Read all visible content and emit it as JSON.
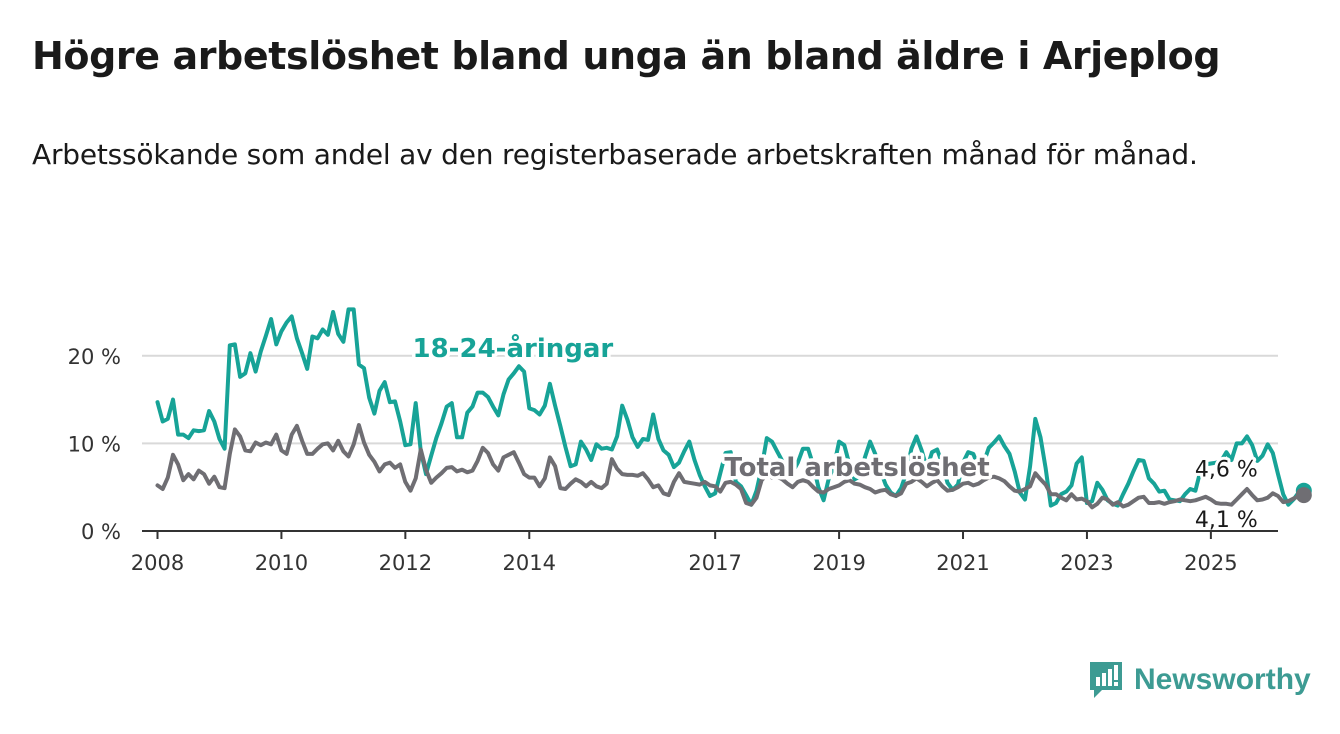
{
  "title": "Högre arbetslöshet bland unga än bland äldre i Arjeplog",
  "subtitle": "Arbetssökande som andel av den registerbaserade arbetskraften månad för månad.",
  "brand": "Newsworthy",
  "colors": {
    "youth": "#17a397",
    "total": "#6f6e73",
    "grid": "#d9d9d9",
    "brand": "#3d9b93"
  },
  "chart_data": {
    "type": "line",
    "x_range": [
      "2007-10",
      "2026-02"
    ],
    "ylim": [
      0,
      25
    ],
    "y_ticks": [
      0,
      10,
      20
    ],
    "y_tick_labels": [
      "0 %",
      "10 %",
      "20 %"
    ],
    "x_ticks": [
      "2008",
      "2010",
      "2012",
      "2014",
      "2017",
      "2019",
      "2021",
      "2023",
      "2025"
    ],
    "grid": true,
    "series": [
      {
        "name": "18-24-åringar",
        "color": "#17a397",
        "start": "2008-01",
        "values": [
          14.7,
          12.5,
          12.8,
          15.0,
          11.0,
          11.0,
          10.6,
          11.5,
          11.4,
          11.5,
          13.7,
          12.5,
          10.5,
          9.4,
          21.2,
          21.3,
          17.6,
          18.0,
          20.3,
          18.2,
          20.5,
          22.3,
          24.2,
          21.3,
          22.8,
          23.8,
          24.5,
          22.0,
          20.3,
          18.5,
          22.2,
          22.0,
          23.0,
          22.4,
          25.0,
          22.5,
          21.6,
          25.3,
          25.3,
          19.0,
          18.6,
          15.2,
          13.4,
          16.0,
          17.0,
          14.7,
          14.8,
          12.5,
          9.8,
          9.9,
          14.6,
          9.1,
          6.5,
          8.6,
          10.6,
          12.3,
          14.2,
          14.6,
          10.7,
          10.7,
          13.5,
          14.2,
          15.8,
          15.8,
          15.3,
          14.2,
          13.2,
          15.6,
          17.3,
          18.0,
          18.8,
          18.2,
          14.0,
          13.8,
          13.3,
          14.3,
          16.8,
          14.3,
          12.0,
          9.6,
          7.4,
          7.6,
          10.2,
          9.3,
          8.1,
          9.9,
          9.4,
          9.5,
          9.3,
          10.8,
          14.3,
          12.7,
          10.7,
          9.6,
          10.5,
          10.4,
          13.3,
          10.5,
          9.2,
          8.7,
          7.3,
          7.8,
          9.1,
          10.2,
          8.1,
          6.4,
          5.1,
          4.0,
          4.3,
          6.6,
          8.9,
          9.0,
          5.6,
          5.1,
          4.1,
          3.0,
          4.6,
          7.2,
          10.6,
          10.2,
          9.1,
          8.0,
          6.5,
          6.7,
          7.8,
          9.4,
          9.4,
          7.5,
          5.0,
          3.5,
          6.0,
          7.4,
          10.2,
          9.8,
          7.6,
          5.9,
          6.2,
          8.4,
          10.2,
          8.8,
          6.9,
          5.3,
          4.4,
          4.0,
          4.9,
          6.6,
          9.4,
          10.8,
          9.2,
          7.1,
          9.0,
          9.3,
          7.6,
          5.5,
          4.7,
          5.3,
          7.8,
          9.0,
          8.8,
          7.3,
          7.8,
          9.5,
          10.1,
          10.8,
          9.7,
          8.8,
          6.8,
          4.4,
          3.6,
          7.4,
          12.8,
          10.7,
          7.2,
          2.9,
          3.2,
          4.2,
          4.5,
          5.2,
          7.7,
          8.4,
          3.2,
          3.4,
          5.5,
          4.7,
          3.5,
          3.1,
          2.9,
          4.2,
          5.4,
          6.8,
          8.1,
          8.0,
          6.0,
          5.4,
          4.5,
          4.6,
          3.6,
          3.5,
          3.4,
          4.2,
          4.8,
          4.6,
          6.9,
          7.6,
          7.7,
          7.8,
          8.0,
          9.0,
          8.1,
          10.0,
          10.0,
          10.8,
          9.8,
          8.0,
          8.6,
          9.9,
          8.9,
          6.5,
          4.2,
          3.0,
          3.6,
          4.4,
          4.6
        ]
      },
      {
        "name": "Total arbetslöshet",
        "color": "#6f6e73",
        "start": "2008-01",
        "values": [
          5.2,
          4.8,
          6.1,
          8.7,
          7.6,
          5.8,
          6.5,
          5.9,
          6.9,
          6.5,
          5.4,
          6.2,
          5.0,
          4.9,
          8.8,
          11.6,
          10.8,
          9.2,
          9.1,
          10.1,
          9.8,
          10.1,
          9.9,
          11.0,
          9.2,
          8.8,
          11.0,
          12.0,
          10.3,
          8.8,
          8.8,
          9.4,
          9.9,
          10.0,
          9.2,
          10.3,
          9.1,
          8.5,
          9.9,
          12.1,
          10.1,
          8.7,
          7.9,
          6.8,
          7.6,
          7.8,
          7.2,
          7.6,
          5.6,
          4.6,
          6.0,
          9.3,
          7.0,
          5.5,
          6.1,
          6.6,
          7.2,
          7.3,
          6.8,
          7.0,
          6.7,
          6.9,
          8.0,
          9.5,
          8.9,
          7.6,
          6.9,
          8.4,
          8.7,
          9.0,
          7.8,
          6.5,
          6.1,
          6.1,
          5.1,
          6.0,
          8.4,
          7.4,
          4.9,
          4.8,
          5.4,
          5.9,
          5.6,
          5.1,
          5.6,
          5.1,
          4.9,
          5.4,
          8.2,
          7.1,
          6.5,
          6.4,
          6.4,
          6.3,
          6.6,
          5.9,
          5.0,
          5.2,
          4.3,
          4.1,
          5.6,
          6.6,
          5.6,
          5.5,
          5.4,
          5.3,
          5.6,
          5.2,
          5.1,
          4.5,
          5.5,
          5.6,
          5.3,
          4.8,
          3.2,
          3.0,
          3.8,
          5.8,
          6.4,
          6.1,
          6.2,
          5.9,
          5.4,
          5.0,
          5.6,
          5.8,
          5.6,
          5.0,
          4.5,
          4.4,
          4.8,
          5.0,
          5.2,
          5.6,
          5.8,
          5.4,
          5.3,
          5.0,
          4.8,
          4.4,
          4.6,
          4.7,
          4.2,
          4.0,
          4.3,
          5.4,
          5.6,
          6.0,
          5.6,
          5.1,
          5.5,
          5.8,
          5.1,
          4.6,
          4.7,
          5.0,
          5.4,
          5.5,
          5.2,
          5.4,
          5.8,
          6.1,
          6.2,
          6.0,
          5.7,
          5.1,
          4.6,
          4.5,
          4.8,
          5.1,
          6.6,
          5.9,
          5.3,
          4.2,
          4.2,
          3.8,
          3.5,
          4.2,
          3.6,
          3.7,
          3.4,
          2.7,
          3.1,
          3.8,
          3.6,
          3.0,
          3.3,
          2.8,
          3.0,
          3.4,
          3.8,
          3.9,
          3.2,
          3.2,
          3.3,
          3.1,
          3.3,
          3.4,
          3.6,
          3.5,
          3.4,
          3.5,
          3.7,
          3.9,
          3.6,
          3.2,
          3.1,
          3.1,
          3.0,
          3.6,
          4.2,
          4.8,
          4.1,
          3.5,
          3.6,
          3.8,
          4.3,
          4.0,
          3.3,
          3.4,
          3.7,
          4.0,
          4.1
        ]
      }
    ],
    "annotations": [
      {
        "series": "18-24-åringar",
        "label": "18-24-åringar",
        "at": "2012-02"
      },
      {
        "series": "Total arbetslöshet",
        "label": "Total arbetslöshet",
        "at": "2017-02"
      },
      {
        "series": "18-24-åringar",
        "label": "4,6 %",
        "at": "2025-04",
        "value": 4.6
      },
      {
        "series": "Total arbetslöshet",
        "label": "4,1 %",
        "at": "2025-04",
        "value": 4.1
      }
    ]
  }
}
